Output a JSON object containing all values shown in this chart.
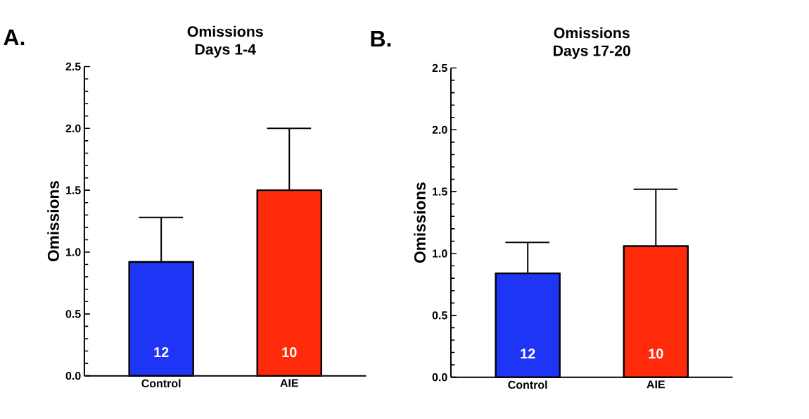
{
  "chart_data": [
    {
      "type": "bar",
      "title": "Omissions",
      "subtitle": "Days 1-4",
      "ylabel": "Omissions",
      "categories": [
        "Control",
        "AIE"
      ],
      "values": [
        0.92,
        1.5
      ],
      "colors": [
        "#1f35f5",
        "#ff2a0a"
      ],
      "errors": [
        [
          0.92,
          1.28
        ],
        [
          1.5,
          2.0
        ]
      ],
      "ylim": [
        0,
        2.5
      ],
      "yticks": [
        {
          "value": 0,
          "label": "0.0"
        },
        {
          "value": 0.5,
          "label": "0.5"
        },
        {
          "value": 1,
          "label": "1.0"
        },
        {
          "value": 1.5,
          "label": "1.5"
        },
        {
          "value": 2,
          "label": "2.0"
        },
        {
          "value": 2.5,
          "label": "2.5"
        }
      ],
      "annotations": [
        "A.",
        "12",
        "10"
      ]
    },
    {
      "type": "bar",
      "title": "Omissions",
      "subtitle": "Days 17-20",
      "ylabel": "Omissions",
      "categories": [
        "Control",
        "AIE"
      ],
      "values": [
        0.84,
        1.06
      ],
      "colors": [
        "#1f35f5",
        "#ff2a0a"
      ],
      "errors": [
        [
          0.84,
          1.09
        ],
        [
          1.06,
          1.52
        ]
      ],
      "ylim": [
        0,
        2.5
      ],
      "yticks": [
        {
          "value": 0,
          "label": "0.0"
        },
        {
          "value": 0.5,
          "label": "0.5"
        },
        {
          "value": 1,
          "label": "1.0"
        },
        {
          "value": 1.5,
          "label": "1.5"
        },
        {
          "value": 2,
          "label": "2.0"
        },
        {
          "value": 2.5,
          "label": "2.5"
        }
      ],
      "annotations": [
        "B.",
        "12",
        "10"
      ]
    }
  ]
}
